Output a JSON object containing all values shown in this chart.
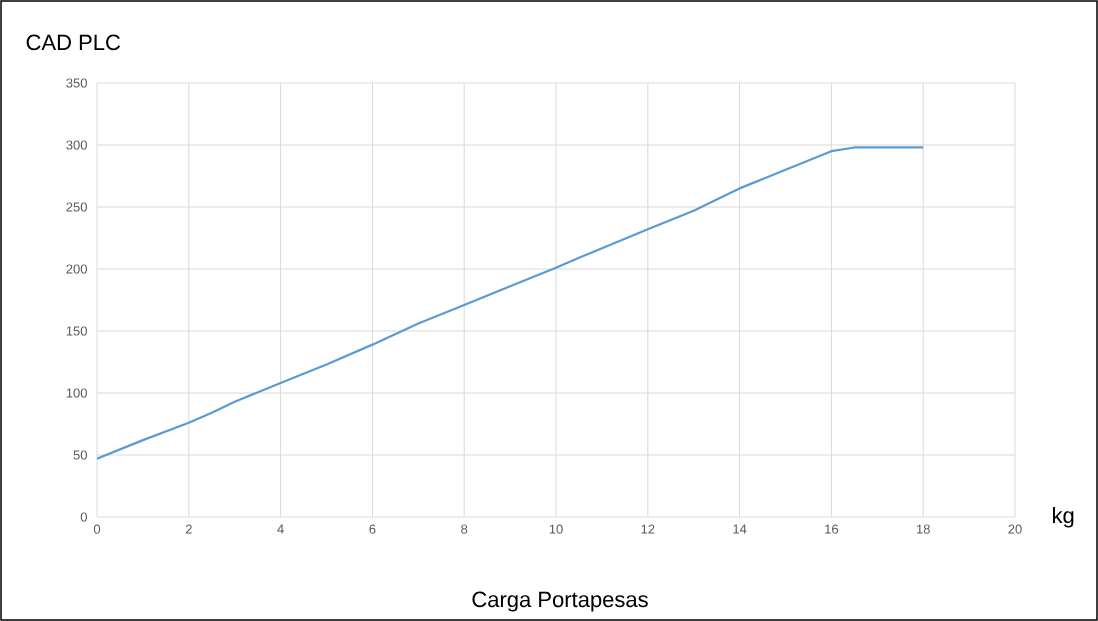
{
  "chart_data": {
    "type": "line",
    "ylabel": "CAD PLC",
    "xlabel": "Carga Portapesas",
    "annotations": [
      "kg"
    ],
    "x": [
      0,
      1,
      2,
      2.5,
      3,
      4,
      5,
      6,
      7,
      8,
      9,
      10,
      10.5,
      12,
      13,
      13.5,
      14,
      15,
      16,
      16.5,
      18
    ],
    "series": [
      {
        "color": "#5b9bd5",
        "values": [
          47,
          62,
          76,
          84,
          93,
          108,
          123,
          139,
          156,
          171,
          186,
          201,
          209,
          232,
          247,
          256,
          265,
          280,
          295,
          298,
          298
        ]
      }
    ],
    "xlim": [
      0,
      20
    ],
    "ylim": [
      0,
      350
    ],
    "xticks": [
      0,
      2,
      4,
      6,
      8,
      10,
      12,
      14,
      16,
      18,
      20
    ],
    "yticks": [
      0,
      50,
      100,
      150,
      200,
      250,
      300,
      350
    ],
    "grid": true,
    "marker": "none",
    "line_style": "solid"
  }
}
